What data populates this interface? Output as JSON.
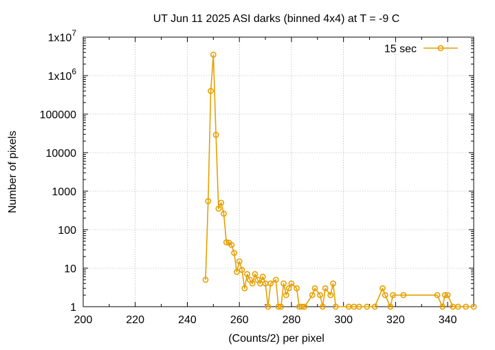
{
  "chart_data": {
    "type": "line",
    "title": "UT Jun 11 2025 ASI darks (binned 4x4) at T = -9 C",
    "xlabel": "(Counts/2) per pixel",
    "ylabel": "Number of pixels",
    "xlim": [
      200,
      350
    ],
    "ylim": [
      1,
      10000000
    ],
    "yscale": "log",
    "grid": true,
    "legend_position": "top-right",
    "x_ticks": [
      "200",
      "220",
      "240",
      "260",
      "280",
      "300",
      "320",
      "340"
    ],
    "y_ticks": [
      {
        "value": 1,
        "base": "1",
        "exp": ""
      },
      {
        "value": 10,
        "base": "10",
        "exp": ""
      },
      {
        "value": 100,
        "base": "100",
        "exp": ""
      },
      {
        "value": 1000,
        "base": "1000",
        "exp": ""
      },
      {
        "value": 10000,
        "base": "10000",
        "exp": ""
      },
      {
        "value": 100000,
        "base": "100000",
        "exp": ""
      },
      {
        "value": 1000000,
        "base": "1x10",
        "exp": "6"
      },
      {
        "value": 10000000,
        "base": "1x10",
        "exp": "7"
      }
    ],
    "colors": {
      "series": "#e69f00",
      "grid": "#a0a0a0",
      "axis": "#000000"
    },
    "series": [
      {
        "name": "15 sec",
        "points": [
          [
            247,
            5
          ],
          [
            248,
            550
          ],
          [
            249,
            400000
          ],
          [
            250,
            3500000
          ],
          [
            251,
            29000
          ],
          [
            252,
            350
          ],
          [
            253,
            500
          ],
          [
            254,
            260
          ],
          [
            255,
            47
          ],
          [
            256,
            46
          ],
          [
            257,
            40
          ],
          [
            258,
            25
          ],
          [
            259,
            8
          ],
          [
            260,
            15
          ],
          [
            261,
            9
          ],
          [
            262,
            3
          ],
          [
            263,
            7
          ],
          [
            264,
            5
          ],
          [
            265,
            4
          ],
          [
            266,
            7
          ],
          [
            267,
            5
          ],
          [
            268,
            4
          ],
          [
            269,
            6
          ],
          [
            270,
            4
          ],
          [
            271,
            1
          ],
          [
            272,
            4
          ],
          [
            274,
            5
          ],
          [
            275,
            1
          ],
          [
            276,
            1
          ],
          [
            277,
            4
          ],
          [
            278,
            2
          ],
          [
            279,
            3
          ],
          [
            280,
            4
          ],
          [
            282,
            3
          ],
          [
            283,
            1
          ],
          [
            284,
            1
          ],
          [
            285,
            1
          ],
          [
            288,
            2
          ],
          [
            289,
            3
          ],
          [
            291,
            2
          ],
          [
            292,
            1
          ],
          [
            293,
            3
          ],
          [
            295,
            2
          ],
          [
            296,
            4
          ],
          [
            297,
            1
          ],
          [
            302,
            1
          ],
          [
            304,
            1
          ],
          [
            306,
            1
          ],
          [
            309,
            1
          ],
          [
            312,
            1
          ],
          [
            315,
            3
          ],
          [
            316,
            2
          ],
          [
            318,
            1
          ],
          [
            319,
            2
          ],
          [
            323,
            2
          ],
          [
            336,
            2
          ],
          [
            338,
            1
          ],
          [
            339,
            2
          ],
          [
            340,
            2
          ],
          [
            342,
            1
          ],
          [
            344,
            1
          ],
          [
            347,
            1
          ],
          [
            350,
            1
          ]
        ]
      }
    ]
  }
}
